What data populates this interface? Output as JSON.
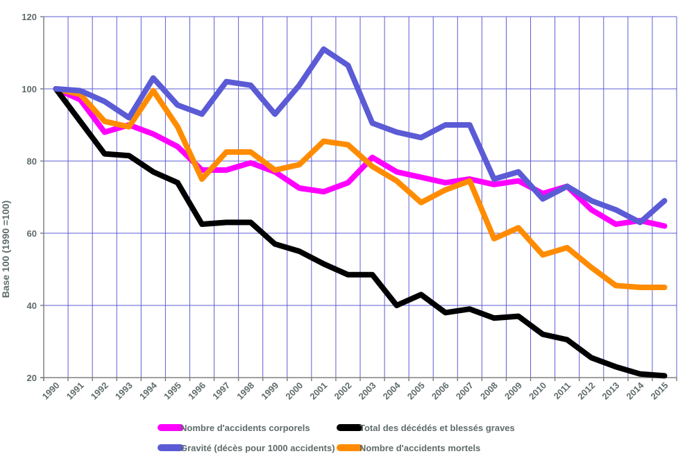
{
  "chart_data": {
    "type": "line",
    "title": "",
    "xlabel": "",
    "ylabel": "Base 100 (1990 =100)",
    "ylim": [
      20,
      120
    ],
    "yticks": [
      "20",
      "40",
      "60",
      "80",
      "100",
      "120"
    ],
    "grid": true,
    "legend_position": "bottom",
    "categories": [
      "1990",
      "1991",
      "1992",
      "1993",
      "1994",
      "1995",
      "1996",
      "1997",
      "1998",
      "1999",
      "2000",
      "2001",
      "2002",
      "2003",
      "2004",
      "2005",
      "2006",
      "2007",
      "2008",
      "2009",
      "2010",
      "2011",
      "2012",
      "2013",
      "2014",
      "2015"
    ],
    "series": [
      {
        "name": "Nombre d'accidents corporels",
        "color": "#ff00ff",
        "values": [
          100,
          97,
          88,
          90,
          87.5,
          84,
          77.5,
          77.5,
          79.5,
          77,
          72.5,
          71.5,
          74,
          81,
          77,
          75.5,
          74,
          75,
          73.5,
          74.5,
          71,
          73,
          66.5,
          62.5,
          63.5,
          62
        ]
      },
      {
        "name": "Total des décédés et blessés graves",
        "color": "#000000",
        "values": [
          100,
          91,
          82,
          81.5,
          77,
          74,
          62.5,
          63,
          63,
          57,
          55,
          51.5,
          48.5,
          48.5,
          40,
          43,
          38,
          39,
          36.5,
          37,
          32,
          30.5,
          25.5,
          23,
          21,
          20.5
        ]
      },
      {
        "name": "Gravité (décès pour 1000 accidents)",
        "color": "#5b5bd6",
        "values": [
          100,
          99.5,
          96.5,
          92,
          103,
          95.5,
          93,
          102,
          101,
          93,
          101,
          111,
          106.5,
          90.5,
          88,
          86.5,
          90,
          90,
          75,
          77,
          69.5,
          73,
          69,
          66.5,
          63,
          69
        ]
      },
      {
        "name": "Nombre d'accidents mortels",
        "color": "#ff8c00",
        "values": [
          100,
          98.5,
          91,
          89.5,
          99.5,
          89.5,
          75,
          82.5,
          82.5,
          77.5,
          79,
          85.5,
          84.5,
          78.5,
          74.5,
          68.5,
          72,
          74.5,
          58.5,
          61.5,
          54,
          56,
          50.5,
          45.5,
          45,
          45
        ]
      }
    ]
  }
}
